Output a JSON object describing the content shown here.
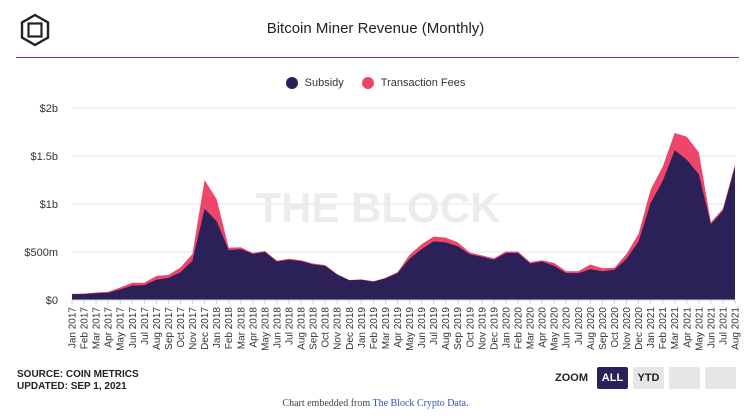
{
  "header": {
    "title": "Bitcoin Miner Revenue (Monthly)"
  },
  "legend": [
    {
      "label": "Subsidy",
      "color": "#2b2158"
    },
    {
      "label": "Transaction Fees",
      "color": "#f0456a"
    }
  ],
  "watermark": "THE BLOCK",
  "footer": {
    "source": "SOURCE: COIN METRICS",
    "updated": "UPDATED: SEP 1, 2021",
    "embed_prefix": "Chart embedded from ",
    "embed_link": "The Block Crypto Data",
    "embed_suffix": "."
  },
  "zoom": {
    "label": "ZOOM",
    "buttons": [
      {
        "label": "ALL",
        "active": true
      },
      {
        "label": "YTD",
        "active": false
      },
      {
        "label": "",
        "active": false
      },
      {
        "label": "",
        "active": false
      }
    ]
  },
  "chart_data": {
    "type": "area",
    "stacked": true,
    "ylim": [
      0,
      2000
    ],
    "yticks": [
      {
        "value": 0,
        "label": "$0"
      },
      {
        "value": 500,
        "label": "$500m"
      },
      {
        "value": 1000,
        "label": "$1b"
      },
      {
        "value": 1500,
        "label": "$1.5b"
      },
      {
        "value": 2000,
        "label": "$2b"
      }
    ],
    "categories": [
      "Jan 2017",
      "Feb 2017",
      "Mar 2017",
      "Apr 2017",
      "May 2017",
      "Jun 2017",
      "Jul 2017",
      "Aug 2017",
      "Sep 2017",
      "Oct 2017",
      "Nov 2017",
      "Dec 2017",
      "Jan 2018",
      "Feb 2018",
      "Mar 2018",
      "Apr 2018",
      "May 2018",
      "Jun 2018",
      "Jul 2018",
      "Aug 2018",
      "Sep 2018",
      "Oct 2018",
      "Nov 2018",
      "Dec 2018",
      "Jan 2019",
      "Feb 2019",
      "Mar 2019",
      "Apr 2019",
      "May 2019",
      "Jun 2019",
      "Jul 2019",
      "Aug 2019",
      "Sep 2019",
      "Oct 2019",
      "Nov 2019",
      "Dec 2019",
      "Jan 2020",
      "Feb 2020",
      "Mar 2020",
      "Apr 2020",
      "May 2020",
      "Jun 2020",
      "Jul 2020",
      "Aug 2020",
      "Sep 2020",
      "Oct 2020",
      "Nov 2020",
      "Dec 2020",
      "Jan 2021",
      "Feb 2021",
      "Mar 2021",
      "Apr 2021",
      "May 2021",
      "Jun 2021",
      "Jul 2021",
      "Aug 2021"
    ],
    "series": [
      {
        "name": "Subsidy",
        "color": "#2b2158",
        "values": [
          60,
          62,
          70,
          75,
          110,
          150,
          155,
          210,
          230,
          290,
          410,
          950,
          820,
          520,
          530,
          480,
          500,
          400,
          420,
          405,
          370,
          355,
          265,
          205,
          210,
          190,
          225,
          280,
          430,
          530,
          610,
          600,
          560,
          475,
          450,
          420,
          490,
          490,
          380,
          400,
          355,
          280,
          280,
          320,
          300,
          315,
          430,
          610,
          1010,
          1240,
          1560,
          1460,
          1310,
          790,
          930,
          1390
        ]
      },
      {
        "name": "Transaction Fees",
        "color": "#f0456a",
        "values": [
          5,
          5,
          8,
          10,
          20,
          30,
          25,
          40,
          30,
          50,
          70,
          300,
          230,
          25,
          20,
          10,
          10,
          10,
          10,
          10,
          10,
          10,
          5,
          3,
          5,
          5,
          5,
          10,
          40,
          50,
          50,
          50,
          40,
          20,
          15,
          15,
          15,
          15,
          15,
          15,
          30,
          20,
          20,
          50,
          30,
          20,
          50,
          80,
          140,
          150,
          180,
          240,
          230,
          20,
          20,
          20
        ]
      }
    ]
  }
}
